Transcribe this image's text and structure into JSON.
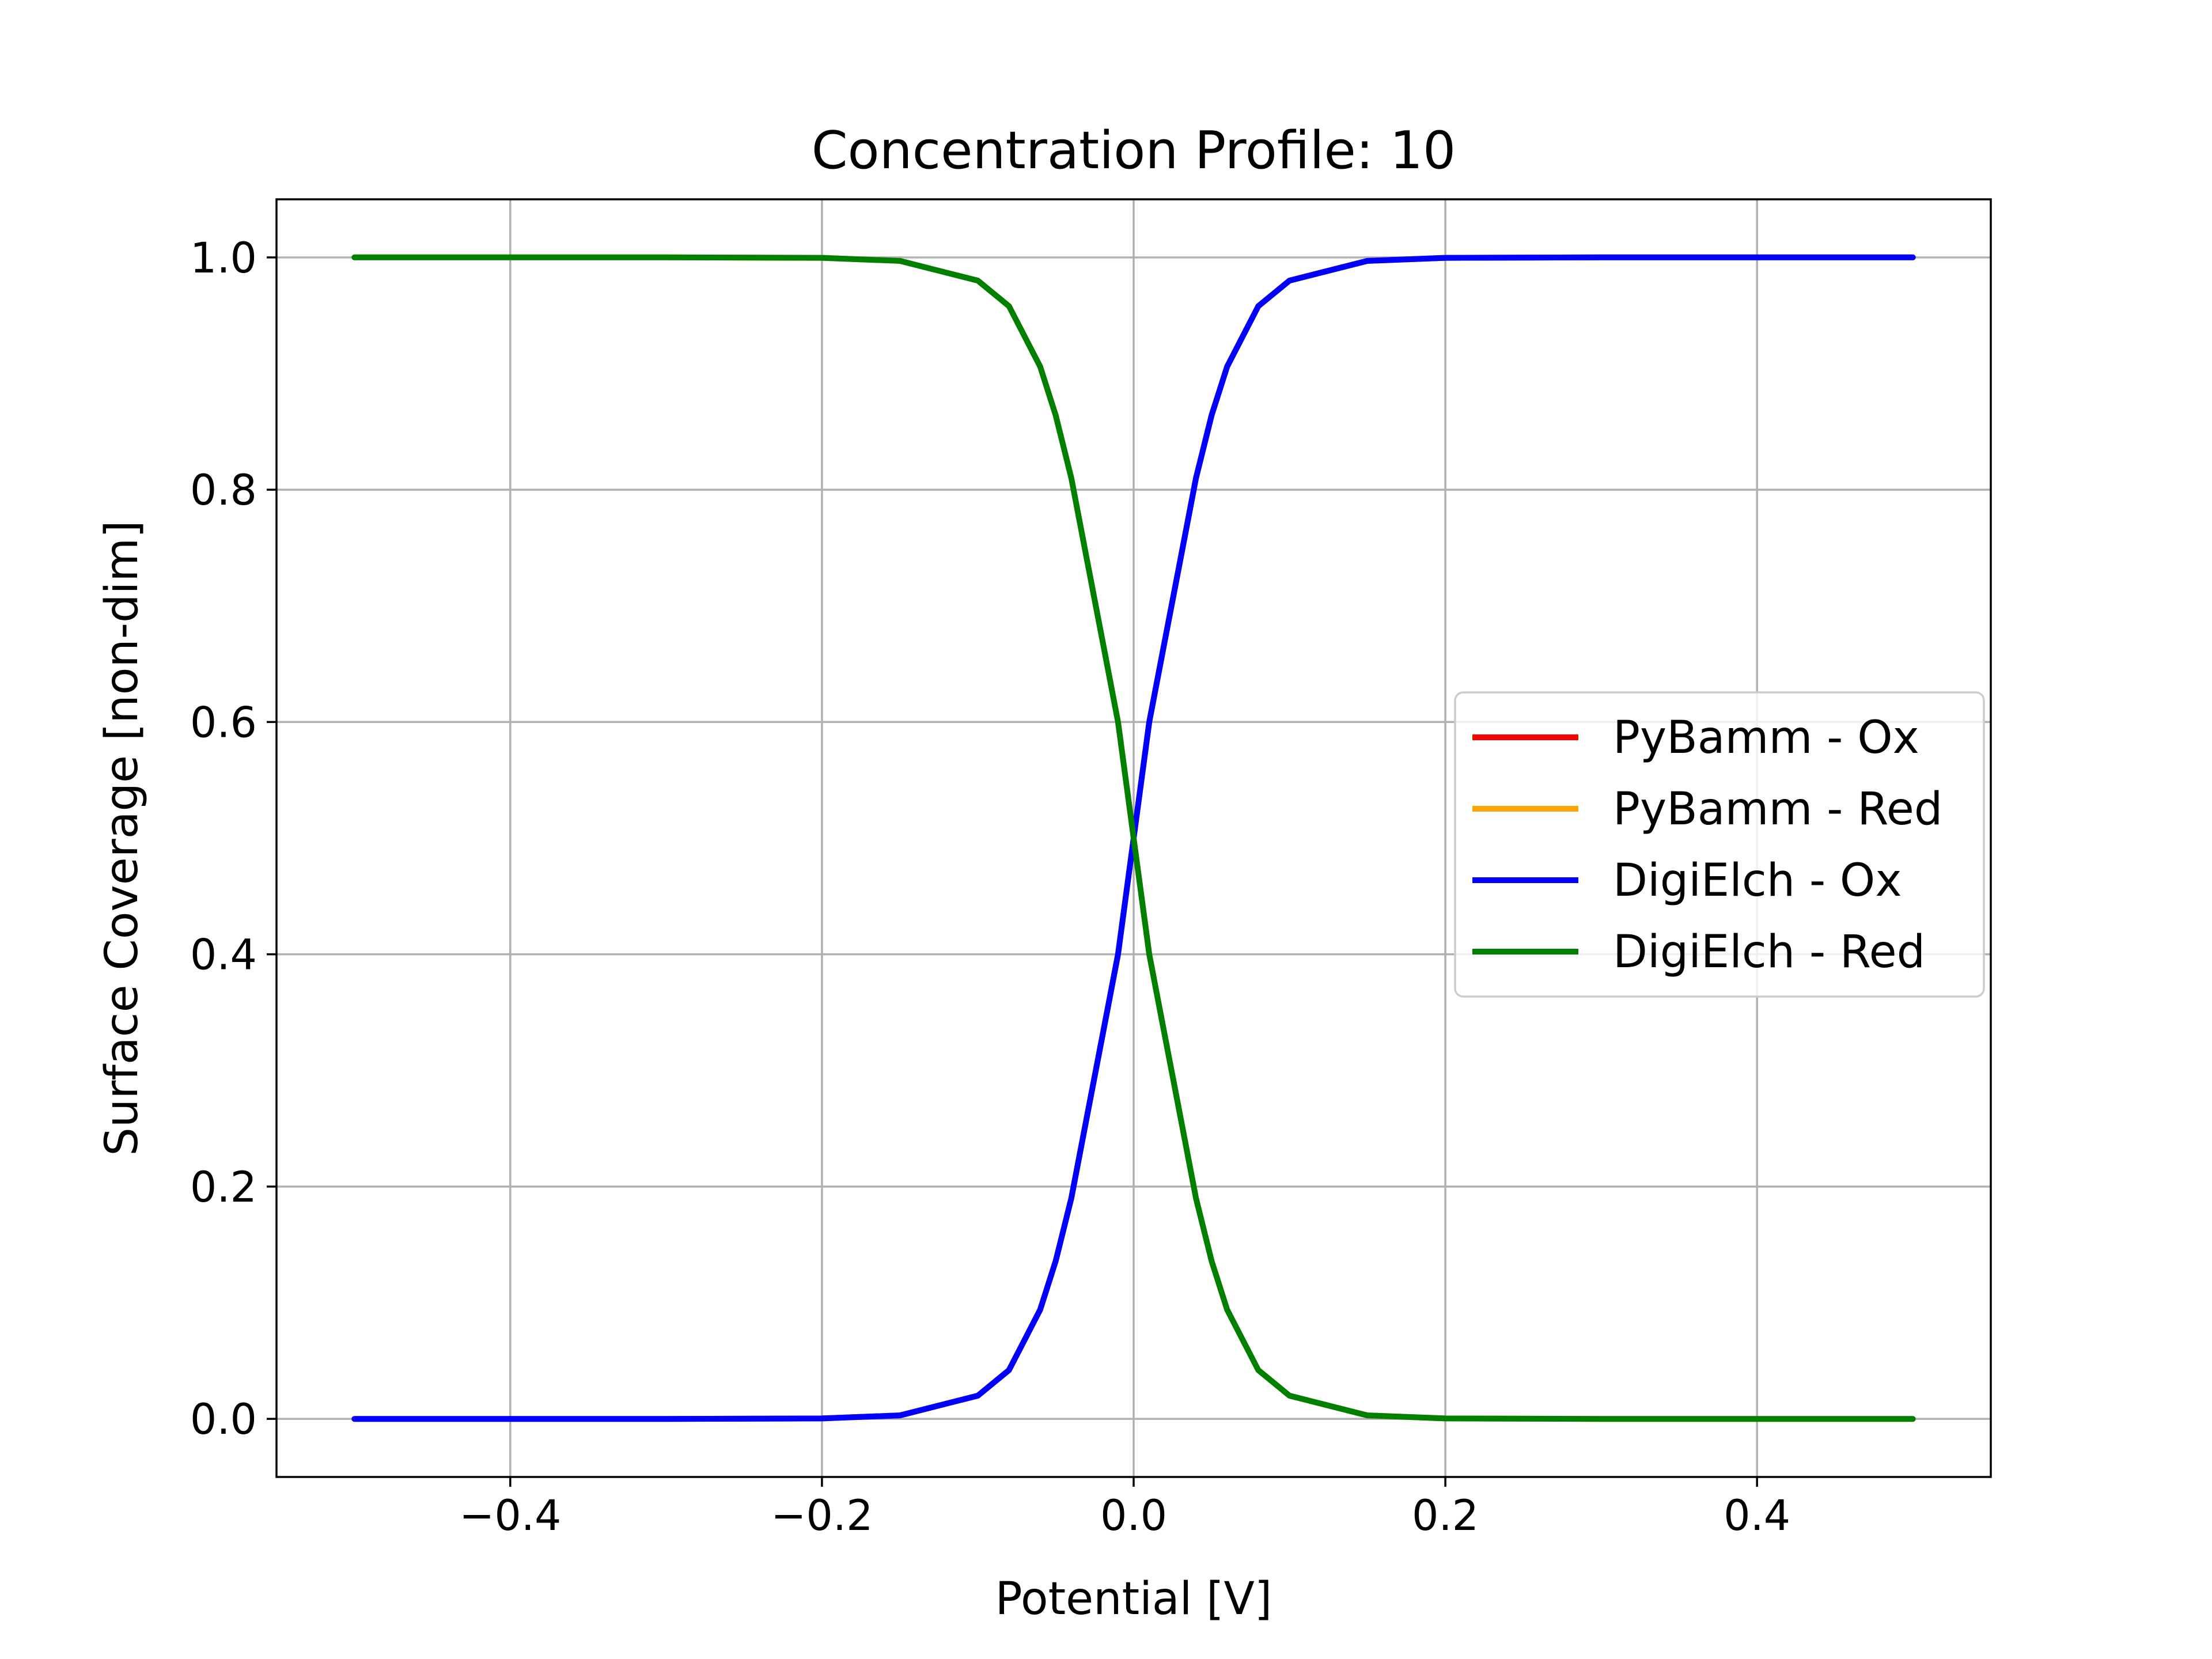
{
  "chart_data": {
    "type": "line",
    "title": "Concentration Profile: 10",
    "xlabel": "Potential [V]",
    "ylabel": "Surface Coverage [non-dim]",
    "xlim": [
      -0.55,
      0.55
    ],
    "ylim": [
      -0.05,
      1.05
    ],
    "xticks": [
      -0.4,
      -0.2,
      0.0,
      0.2,
      0.4
    ],
    "xtick_labels": [
      "−0.4",
      "−0.2",
      "0.0",
      "0.2",
      "0.4"
    ],
    "yticks": [
      0.0,
      0.2,
      0.4,
      0.6,
      0.8,
      1.0
    ],
    "ytick_labels": [
      "0.0",
      "0.2",
      "0.4",
      "0.6",
      "0.8",
      "1.0"
    ],
    "grid": true,
    "legend_position": "center-right",
    "x": [
      -0.5,
      -0.4,
      -0.3,
      -0.2,
      -0.15,
      -0.1,
      -0.08,
      -0.06,
      -0.05,
      -0.04,
      -0.03,
      -0.02,
      -0.01,
      0.0,
      0.01,
      0.02,
      0.03,
      0.04,
      0.05,
      0.06,
      0.08,
      0.1,
      0.15,
      0.2,
      0.3,
      0.4,
      0.5
    ],
    "series": [
      {
        "name": "PyBamm - Ox",
        "color": "#ff0000",
        "values": [
          0.0,
          0.0,
          0.0,
          0.0004,
          0.003,
          0.02,
          0.042,
          0.094,
          0.136,
          0.19,
          0.26,
          0.33,
          0.4,
          0.5,
          0.6,
          0.67,
          0.74,
          0.81,
          0.864,
          0.906,
          0.958,
          0.98,
          0.997,
          0.9996,
          1.0,
          1.0,
          1.0
        ]
      },
      {
        "name": "PyBamm - Red",
        "color": "#ffa500",
        "values": [
          1.0,
          1.0,
          1.0,
          0.9996,
          0.997,
          0.98,
          0.958,
          0.906,
          0.864,
          0.81,
          0.74,
          0.67,
          0.6,
          0.5,
          0.4,
          0.33,
          0.26,
          0.19,
          0.136,
          0.094,
          0.042,
          0.02,
          0.003,
          0.0004,
          0.0,
          0.0,
          0.0
        ]
      },
      {
        "name": "DigiElch - Ox",
        "color": "#0000ff",
        "values": [
          0.0,
          0.0,
          0.0,
          0.0004,
          0.003,
          0.02,
          0.042,
          0.094,
          0.136,
          0.19,
          0.26,
          0.33,
          0.4,
          0.5,
          0.6,
          0.67,
          0.74,
          0.81,
          0.864,
          0.906,
          0.958,
          0.98,
          0.997,
          0.9996,
          1.0,
          1.0,
          1.0
        ]
      },
      {
        "name": "DigiElch - Red",
        "color": "#008000",
        "values": [
          1.0,
          1.0,
          1.0,
          0.9996,
          0.997,
          0.98,
          0.958,
          0.906,
          0.864,
          0.81,
          0.74,
          0.67,
          0.6,
          0.5,
          0.4,
          0.33,
          0.26,
          0.19,
          0.136,
          0.094,
          0.042,
          0.02,
          0.003,
          0.0004,
          0.0,
          0.0,
          0.0
        ]
      }
    ]
  }
}
